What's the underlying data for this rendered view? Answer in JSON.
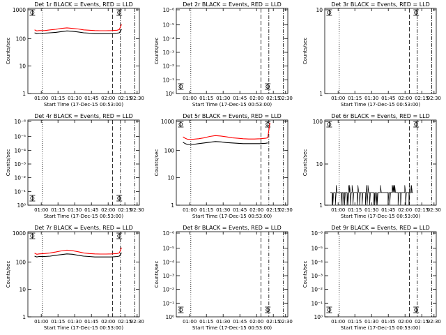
{
  "chart_data": [
    {
      "type": "line",
      "title": "Det 1r BLACK = Events, RED = LLD",
      "ylabel": "Counts/sec",
      "xlabel": "Start Time (17-Dec-15 00:53:00)",
      "yscale": "log",
      "ylim": [
        1,
        1000
      ],
      "ytick_labels": [
        "1",
        "10",
        "100",
        "1000"
      ],
      "x_ticks": [
        "01:00",
        "01:15",
        "01:30",
        "01:45",
        "02:00",
        "02:15",
        "02:30"
      ],
      "series": [
        {
          "color": "#000000",
          "x": [
            0.06,
            0.08,
            0.1,
            0.15,
            0.2,
            0.25,
            0.3,
            0.35,
            0.4,
            0.45,
            0.5,
            0.55,
            0.6,
            0.65,
            0.7,
            0.75,
            0.8,
            0.82,
            0.84
          ],
          "y": [
            150,
            140,
            145,
            145,
            150,
            155,
            165,
            175,
            170,
            160,
            150,
            145,
            140,
            140,
            140,
            140,
            145,
            150,
            200
          ]
        },
        {
          "color": "#ff0000",
          "x": [
            0.06,
            0.08,
            0.1,
            0.15,
            0.2,
            0.25,
            0.3,
            0.35,
            0.4,
            0.45,
            0.5,
            0.55,
            0.6,
            0.65,
            0.7,
            0.75,
            0.8,
            0.82,
            0.84
          ],
          "y": [
            190,
            175,
            180,
            180,
            190,
            200,
            215,
            225,
            215,
            205,
            190,
            185,
            180,
            178,
            178,
            180,
            185,
            195,
            300
          ]
        }
      ]
    },
    {
      "type": "line",
      "title": "Det 2r BLACK = Events, RED = LLD",
      "ylabel": "Counts/sec",
      "xlabel": "Start Time (17-Dec-15 00:53:00)",
      "yscale": "log",
      "ylim": [
        1,
        1000000
      ],
      "ytick_labels": [
        "10⁰",
        "10⁻¹",
        "10⁻²",
        "10⁻³",
        "10⁻⁴",
        "10⁻⁵",
        "10⁻⁶"
      ],
      "x_ticks": [
        "01:00",
        "01:15",
        "01:30",
        "01:45",
        "02:00",
        "02:15",
        "02:30"
      ],
      "series": []
    },
    {
      "type": "line",
      "title": "Det 3r BLACK = Events, RED = LLD",
      "ylabel": "Counts/sec",
      "xlabel": "Start Time (17-Dec-15 00:53:00)",
      "yscale": "log",
      "ylim": [
        1,
        10
      ],
      "ytick_labels": [
        "1",
        "10"
      ],
      "x_ticks": [
        "01:00",
        "01:15",
        "01:30",
        "01:45",
        "02:00",
        "02:15",
        "02:30"
      ],
      "series": []
    },
    {
      "type": "line",
      "title": "Det 4r BLACK = Events, RED = LLD",
      "ylabel": "Counts/sec",
      "xlabel": "Start Time (17-Dec-15 00:53:00)",
      "yscale": "log",
      "ylim": [
        1,
        1000000
      ],
      "ytick_labels": [
        "10⁰",
        "10⁻¹",
        "10⁻²",
        "10⁻³",
        "10⁻⁴",
        "10⁻⁵",
        "10⁻⁶"
      ],
      "x_ticks": [
        "01:00",
        "01:15",
        "01:30",
        "01:45",
        "02:00",
        "02:15",
        "02:30"
      ],
      "series": []
    },
    {
      "type": "line",
      "title": "Det 5r BLACK = Events, RED = LLD",
      "ylabel": "Counts/sec",
      "xlabel": "Start Time (17-Dec-15 00:53:00)",
      "yscale": "log",
      "ylim": [
        1,
        1000
      ],
      "ytick_labels": [
        "1",
        "10",
        "100",
        "1000"
      ],
      "x_ticks": [
        "01:00",
        "01:15",
        "01:30",
        "01:45",
        "02:00",
        "02:15",
        "02:30"
      ],
      "series": [
        {
          "color": "#000000",
          "x": [
            0.06,
            0.08,
            0.1,
            0.15,
            0.2,
            0.25,
            0.3,
            0.35,
            0.4,
            0.45,
            0.5,
            0.55,
            0.6,
            0.65,
            0.7,
            0.75,
            0.8,
            0.82
          ],
          "y": [
            180,
            160,
            150,
            150,
            160,
            170,
            180,
            190,
            185,
            175,
            170,
            165,
            160,
            160,
            160,
            160,
            165,
            170
          ]
        },
        {
          "color": "#ff0000",
          "x": [
            0.06,
            0.08,
            0.1,
            0.15,
            0.2,
            0.25,
            0.3,
            0.35,
            0.4,
            0.45,
            0.5,
            0.55,
            0.6,
            0.65,
            0.7,
            0.75,
            0.8,
            0.82,
            0.84
          ],
          "y": [
            280,
            250,
            230,
            230,
            240,
            260,
            290,
            310,
            300,
            280,
            260,
            250,
            240,
            235,
            235,
            240,
            250,
            260,
            900
          ]
        }
      ]
    },
    {
      "type": "line",
      "title": "Det 6r BLACK = Events, RED = LLD",
      "ylabel": "Counts/sec",
      "xlabel": "Start Time (17-Dec-15 00:53:00)",
      "yscale": "log",
      "ylim": [
        1,
        100
      ],
      "ytick_labels": [
        "1",
        "10",
        "100"
      ],
      "x_ticks": [
        "01:00",
        "01:15",
        "01:30",
        "01:45",
        "02:00",
        "02:15",
        "02:30"
      ],
      "series": [
        {
          "color": "#000000",
          "x": [
            0.05,
            0.8
          ],
          "y": [
            2,
            2
          ],
          "note": "noisy spikes between 1 and 3 counts/sec"
        }
      ]
    },
    {
      "type": "line",
      "title": "Det 7r BLACK = Events, RED = LLD",
      "ylabel": "Counts/sec",
      "xlabel": "Start Time (17-Dec-15 00:53:00)",
      "yscale": "log",
      "ylim": [
        1,
        1000
      ],
      "ytick_labels": [
        "1",
        "10",
        "100",
        "1000"
      ],
      "x_ticks": [
        "01:00",
        "01:15",
        "01:30",
        "01:45",
        "02:00",
        "02:15",
        "02:30"
      ],
      "series": [
        {
          "color": "#000000",
          "x": [
            0.06,
            0.08,
            0.1,
            0.15,
            0.2,
            0.25,
            0.3,
            0.35,
            0.4,
            0.45,
            0.5,
            0.55,
            0.6,
            0.65,
            0.7,
            0.75,
            0.8,
            0.82,
            0.84
          ],
          "y": [
            150,
            140,
            145,
            145,
            150,
            160,
            170,
            180,
            175,
            160,
            150,
            145,
            140,
            140,
            140,
            140,
            145,
            150,
            200
          ]
        },
        {
          "color": "#ff0000",
          "x": [
            0.06,
            0.08,
            0.1,
            0.15,
            0.2,
            0.25,
            0.3,
            0.35,
            0.4,
            0.45,
            0.5,
            0.55,
            0.6,
            0.65,
            0.7,
            0.75,
            0.8,
            0.82,
            0.84
          ],
          "y": [
            190,
            175,
            180,
            185,
            195,
            210,
            230,
            245,
            235,
            215,
            195,
            185,
            180,
            178,
            178,
            180,
            185,
            195,
            300
          ]
        }
      ]
    },
    {
      "type": "line",
      "title": "Det 8r BLACK = Events, RED = LLD",
      "ylabel": "Counts/sec",
      "xlabel": "Start Time (17-Dec-15 00:53:00)",
      "yscale": "log",
      "ylim": [
        1,
        1000000
      ],
      "ytick_labels": [
        "10⁰",
        "10⁻¹",
        "10⁻²",
        "10⁻³",
        "10⁻⁴",
        "10⁻⁵",
        "10⁻⁶"
      ],
      "x_ticks": [
        "01:00",
        "01:15",
        "01:30",
        "01:45",
        "02:00",
        "02:15",
        "02:30"
      ],
      "series": []
    },
    {
      "type": "line",
      "title": "Det 9r BLACK = Events, RED = LLD",
      "ylabel": "Counts/sec",
      "xlabel": "Start Time (17-Dec-15 00:53:00)",
      "yscale": "log",
      "ylim": [
        1,
        1000000
      ],
      "ytick_labels": [
        "10⁰",
        "10⁻¹",
        "10⁻²",
        "10⁻³",
        "10⁻⁴",
        "10⁻⁵",
        "10⁻⁶"
      ],
      "x_ticks": [
        "01:00",
        "01:15",
        "01:30",
        "01:45",
        "02:00",
        "02:15",
        "02:30"
      ],
      "series": []
    }
  ]
}
